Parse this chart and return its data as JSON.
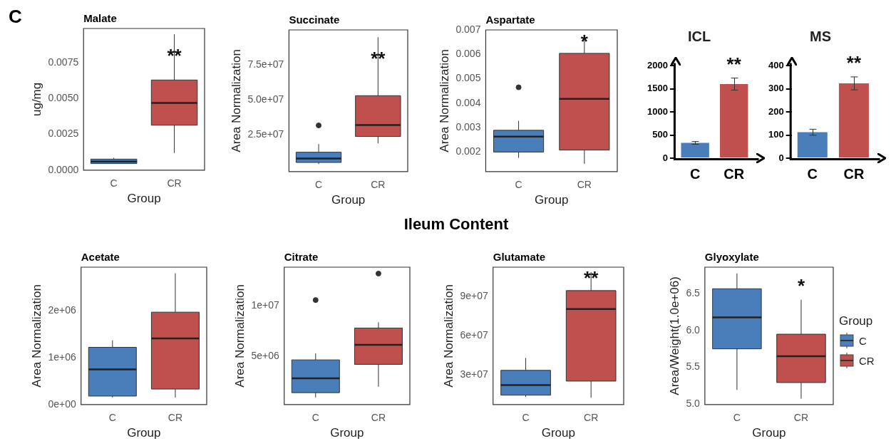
{
  "chart_data": [
    {
      "type": "other",
      "title": "C"
    },
    {
      "type": "box",
      "title": "Malate",
      "xlabel": "Group",
      "ylabel": "ug/mg",
      "categories": [
        "C",
        "CR"
      ],
      "colors": [
        "#4a7ebb",
        "#c0504d"
      ],
      "ylim": [
        0,
        0.0099
      ],
      "yticks": [
        {
          "value": 0,
          "label": "0.0000"
        },
        0.0025,
        {
          "value": 0.005,
          "label": "0.0050"
        },
        0.0075
      ],
      "boxes": [
        {
          "low": 0.00045,
          "q1": 0.00046,
          "median": 0.0006,
          "q3": 0.00077,
          "high": 0.00086
        },
        {
          "low": 0.0012,
          "q1": 0.00314,
          "median": 0.00469,
          "q3": 0.0063,
          "high": 0.0095
        }
      ],
      "annotations": [
        {
          "text": "**",
          "x": "CR",
          "y": 0.0082
        }
      ]
    },
    {
      "type": "box",
      "title": "Succinate",
      "xlabel": "Group",
      "ylabel": "Area Normalization",
      "categories": [
        "C",
        "CR"
      ],
      "colors": [
        "#4a7ebb",
        "#c0504d"
      ],
      "ylim": [
        -1000000,
        100000000
      ],
      "yticks": [
        {
          "value": 25000000,
          "label": "2.5e+07"
        },
        {
          "value": 50000000,
          "label": "5.0e+07"
        },
        {
          "value": 75000000,
          "label": "7.5e+07"
        }
      ],
      "boxes": [
        {
          "low": 4300000,
          "q1": 5500000,
          "median": 8300000,
          "q3": 12800000,
          "high": 18600000,
          "outliers": [
            31900000
          ]
        },
        {
          "low": 19100000,
          "q1": 24000000,
          "median": 32200000,
          "q3": 53100000,
          "high": 94800000
        }
      ],
      "annotations": [
        {
          "text": "**",
          "x": "CR",
          "y": 81600000
        }
      ]
    },
    {
      "type": "box",
      "title": "Aspartate",
      "xlabel": "Group",
      "ylabel": "Area Normalization",
      "categories": [
        "C",
        "CR"
      ],
      "colors": [
        "#4a7ebb",
        "#c0504d"
      ],
      "ylim": [
        0.0012,
        0.007
      ],
      "yticks": [
        0.002,
        0.003,
        0.004,
        0.005,
        0.006,
        0.007
      ],
      "boxes": [
        {
          "low": 0.00176,
          "q1": 0.002,
          "median": 0.00263,
          "q3": 0.00289,
          "high": 0.00328,
          "outliers": [
            0.00465
          ]
        },
        {
          "low": 0.00152,
          "q1": 0.00208,
          "median": 0.00418,
          "q3": 0.00604,
          "high": 0.0068
        }
      ],
      "annotations": [
        {
          "text": "*",
          "x": "CR",
          "y": 0.00665
        }
      ]
    },
    {
      "type": "bar",
      "title": "ICL",
      "categories": [
        "C",
        "CR"
      ],
      "values": [
        330,
        1600
      ],
      "errors": [
        30,
        130
      ],
      "colors": [
        "#4a7ebb",
        "#c0504d"
      ],
      "ylim": [
        0,
        2000
      ],
      "yticks": [
        0,
        500,
        1000,
        1500,
        2000
      ],
      "annotations": [
        "**"
      ]
    },
    {
      "type": "bar",
      "title": "MS",
      "categories": [
        "C",
        "CR"
      ],
      "values": [
        112,
        323
      ],
      "errors": [
        13,
        28
      ],
      "colors": [
        "#4a7ebb",
        "#c0504d"
      ],
      "ylim": [
        0,
        400
      ],
      "yticks": [
        0,
        100,
        200,
        300,
        400
      ],
      "annotations": [
        "**"
      ]
    },
    {
      "type": "other",
      "title": "Ileum Content"
    },
    {
      "type": "box",
      "title": "Acetate",
      "xlabel": "Group",
      "ylabel": "Area Normalization",
      "categories": [
        "C",
        "CR"
      ],
      "colors": [
        "#4a7ebb",
        "#c0504d"
      ],
      "ylim": [
        0,
        2930000
      ],
      "yticks": [
        {
          "value": 0,
          "label": "0e+00"
        },
        {
          "value": 1000000,
          "label": "1e+06"
        },
        {
          "value": 2000000,
          "label": "2e+06"
        }
      ],
      "boxes": [
        {
          "low": 150000,
          "q1": 180000,
          "median": 750000,
          "q3": 1220000,
          "high": 1370000
        },
        {
          "low": 150000,
          "q1": 330000,
          "median": 1410000,
          "q3": 1970000,
          "high": 2800000
        }
      ]
    },
    {
      "type": "box",
      "title": "Citrate",
      "xlabel": "Group",
      "ylabel": "Area Normalization",
      "categories": [
        "C",
        "CR"
      ],
      "colors": [
        "#4a7ebb",
        "#c0504d"
      ],
      "ylim": [
        230000,
        13770000
      ],
      "yticks": [
        {
          "value": 5000000,
          "label": "5e+06"
        },
        {
          "value": 10000000,
          "label": "1e+07"
        }
      ],
      "boxes": [
        {
          "low": 930000,
          "q1": 1400000,
          "median": 2810000,
          "q3": 4630000,
          "high": 5280000,
          "outliers": [
            10530000
          ]
        },
        {
          "low": 1980000,
          "q1": 4190000,
          "median": 6120000,
          "q3": 7770000,
          "high": 8330000,
          "outliers": [
            13140000
          ]
        }
      ]
    },
    {
      "type": "box",
      "title": "Glutamate",
      "xlabel": "Group",
      "ylabel": "Area Normalization",
      "categories": [
        "C",
        "CR"
      ],
      "colors": [
        "#4a7ebb",
        "#c0504d"
      ],
      "ylim": [
        7200000,
        112800000
      ],
      "yticks": [
        {
          "value": 30000000,
          "label": "3e+07"
        },
        {
          "value": 60000000,
          "label": "6e+07"
        },
        {
          "value": 90000000,
          "label": "9e+07"
        }
      ],
      "boxes": [
        {
          "low": 13000000,
          "q1": 14400000,
          "median": 22200000,
          "q3": 33500000,
          "high": 43000000
        },
        {
          "low": 12400000,
          "q1": 25200000,
          "median": 80600000,
          "q3": 94800000,
          "high": 109000000
        }
      ],
      "annotations": [
        {
          "text": "**",
          "x": "CR",
          "y": 107000000
        }
      ]
    },
    {
      "type": "box",
      "title": "Glyoxylate",
      "xlabel": "Group",
      "ylabel": "Area/Weight(1.0e+06)",
      "categories": [
        "C",
        "CR"
      ],
      "ylim": [
        4.99,
        6.865
      ],
      "yticks": [
        {
          "value": 5,
          "label": "5.0"
        },
        6.5,
        {
          "value": 6,
          "label": "6.0"
        },
        5.5
      ],
      "series": [
        {
          "name": "C",
          "color": "#4a7ebb",
          "boxes": [
            {
              "low": 5.19,
              "q1": 5.75,
              "median": 6.18,
              "q3": 6.57,
              "high": 6.78
            },
            null
          ]
        },
        {
          "name": "CR",
          "color": "#c0504d",
          "boxes": [
            null,
            {
              "low": 5.07,
              "q1": 5.29,
              "median": 5.65,
              "q3": 5.95,
              "high": 6.42
            }
          ]
        }
      ],
      "annotations": [
        "*"
      ],
      "legend": "right",
      "legend_title": "Group"
    }
  ]
}
